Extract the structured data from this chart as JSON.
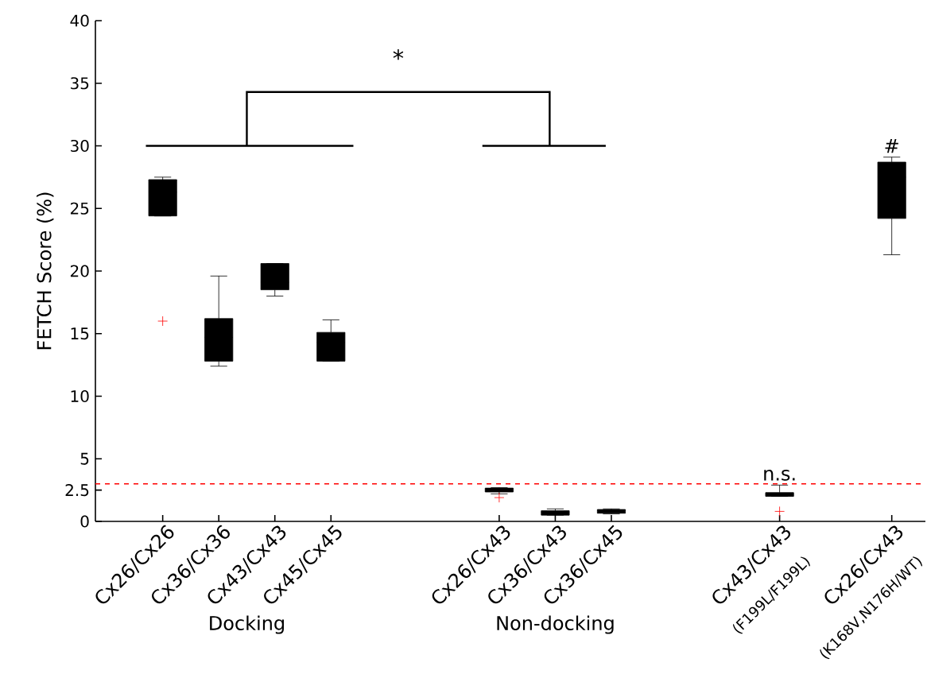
{
  "chart_data": {
    "type": "box",
    "ylabel": "FETCH Score (%)",
    "categories": [
      "Cx26/Cx26",
      "Cx36/Cx36",
      "Cx43/Cx43",
      "Cx45/Cx45",
      null,
      null,
      "Cx26/Cx43",
      "Cx36/Cx43",
      "Cx36/Cx45",
      null,
      null,
      "Cx43/Cx43",
      null,
      "Cx26/Cx43"
    ],
    "color": "#000000",
    "boxes": [
      {
        "low": 24.4,
        "q1": 24.4,
        "median": 26.3,
        "q3": 27.3,
        "high": 27.5,
        "outliers": [
          16.0
        ]
      },
      {
        "low": 12.4,
        "q1": 12.8,
        "median": 14.7,
        "q3": 16.2,
        "high": 19.6
      },
      {
        "low": 18.0,
        "q1": 18.5,
        "median": 19.1,
        "q3": 20.6,
        "high": 20.6
      },
      {
        "low": 12.8,
        "q1": 12.8,
        "median": 14.3,
        "q3": 15.1,
        "high": 16.1
      },
      null,
      null,
      {
        "low": 2.2,
        "q1": 2.35,
        "median": 2.5,
        "q3": 2.66,
        "high": 2.7,
        "outliers": [
          1.9
        ]
      },
      {
        "low": 0.5,
        "q1": 0.5,
        "median": 0.72,
        "q3": 0.85,
        "high": 1.0
      },
      {
        "low": 0.6,
        "q1": 0.65,
        "median": 0.9,
        "q3": 0.95,
        "high": 1.0
      },
      null,
      null,
      {
        "low": 2.0,
        "q1": 2.0,
        "median": 2.15,
        "q3": 2.3,
        "high": 2.9,
        "outliers": [
          0.8
        ]
      },
      null,
      {
        "low": 21.3,
        "q1": 24.2,
        "median": 27.5,
        "q3": 28.7,
        "high": 29.1
      }
    ],
    "ylim": [
      0,
      40
    ],
    "yticks": [
      0,
      2.5,
      5,
      10,
      15,
      20,
      25,
      30,
      35,
      40
    ],
    "ref_lines": [
      {
        "axis": "y",
        "value": 3,
        "color": "#ff0000",
        "line_style": "dashed"
      }
    ],
    "annotations": [
      "*",
      "n.s.",
      "#",
      "Docking",
      "Non-docking",
      "(F199L/F199L)",
      "(K168V,N176H/WT)"
    ]
  }
}
